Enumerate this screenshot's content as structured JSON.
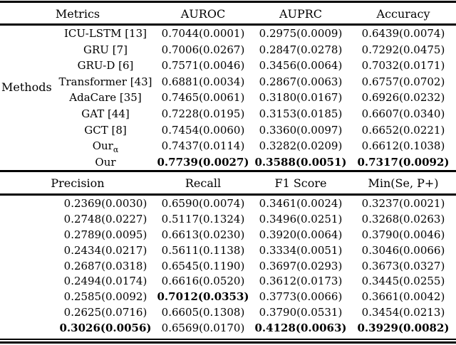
{
  "page": {
    "background": "#ffffff",
    "text_color": "#000000",
    "rule_color": "#000000"
  },
  "table1": {
    "headers": {
      "metrics": "Metrics",
      "auroc": "AUROC",
      "auprc": "AUPRC",
      "accuracy": "Accuracy"
    },
    "row_group_label": "Methods",
    "rows": [
      {
        "method": "ICU-LSTM [13]",
        "auroc": "0.7044(0.0001)",
        "auprc": "0.2975(0.0009)",
        "accuracy": "0.6439(0.0074)"
      },
      {
        "method": "GRU [7]",
        "auroc": "0.7006(0.0267)",
        "auprc": "0.2847(0.0278)",
        "accuracy": "0.7292(0.0475)"
      },
      {
        "method": "GRU-D [6]",
        "auroc": "0.7571(0.0046)",
        "auprc": "0.3456(0.0064)",
        "accuracy": "0.7032(0.0171)"
      },
      {
        "method": "Transformer [43]",
        "auroc": "0.6881(0.0034)",
        "auprc": "0.2867(0.0063)",
        "accuracy": "0.6757(0.0702)"
      },
      {
        "method": "AdaCare [35]",
        "auroc": "0.7465(0.0061)",
        "auprc": "0.3180(0.0167)",
        "accuracy": "0.6926(0.0232)"
      },
      {
        "method": "GAT [44]",
        "auroc": "0.7228(0.0195)",
        "auprc": "0.3153(0.0185)",
        "accuracy": "0.6607(0.0340)"
      },
      {
        "method": "GCT [8]",
        "auroc": "0.7454(0.0060)",
        "auprc": "0.3360(0.0097)",
        "accuracy": "0.6652(0.0221)"
      },
      {
        "method": "Our",
        "method_sub": "α",
        "auroc": "0.7437(0.0114)",
        "auprc": "0.3282(0.0209)",
        "accuracy": "0.6612(0.1038)"
      },
      {
        "method": "Our",
        "auroc": "0.7739(0.0027)",
        "auprc": "0.3588(0.0051)",
        "accuracy": "0.7317(0.0092)"
      }
    ]
  },
  "table2": {
    "headers": {
      "precision": "Precision",
      "recall": "Recall",
      "f1": "F1 Score",
      "min_se_p": "Min(Se, P+)"
    },
    "rows": [
      {
        "precision": "0.2369(0.0030)",
        "recall": "0.6590(0.0074)",
        "f1": "0.3461(0.0024)",
        "min_se_p": "0.3237(0.0021)"
      },
      {
        "precision": "0.2748(0.0227)",
        "recall": "0.5117(0.1324)",
        "f1": "0.3496(0.0251)",
        "min_se_p": "0.3268(0.0263)"
      },
      {
        "precision": "0.2789(0.0095)",
        "recall": "0.6613(0.0230)",
        "f1": "0.3920(0.0064)",
        "min_se_p": "0.3790(0.0046)"
      },
      {
        "precision": "0.2434(0.0217)",
        "recall": "0.5611(0.1138)",
        "f1": "0.3334(0.0051)",
        "min_se_p": "0.3046(0.0066)"
      },
      {
        "precision": "0.2687(0.0318)",
        "recall": "0.6545(0.1190)",
        "f1": "0.3697(0.0293)",
        "min_se_p": "0.3673(0.0327)"
      },
      {
        "precision": "0.2494(0.0174)",
        "recall": "0.6616(0.0520)",
        "f1": "0.3612(0.0173)",
        "min_se_p": "0.3445(0.0255)"
      },
      {
        "precision": "0.2585(0.0092)",
        "recall": "0.7012(0.0353)",
        "f1": "0.3773(0.0066)",
        "min_se_p": "0.3661(0.0042)"
      },
      {
        "precision": "0.2625(0.0716)",
        "recall": "0.6605(0.1308)",
        "f1": "0.3790(0.0531)",
        "min_se_p": "0.3454(0.0213)"
      },
      {
        "precision": "0.3026(0.0056)",
        "recall": "0.6569(0.0170)",
        "f1": "0.4128(0.0063)",
        "min_se_p": "0.3929(0.0082)"
      }
    ]
  }
}
